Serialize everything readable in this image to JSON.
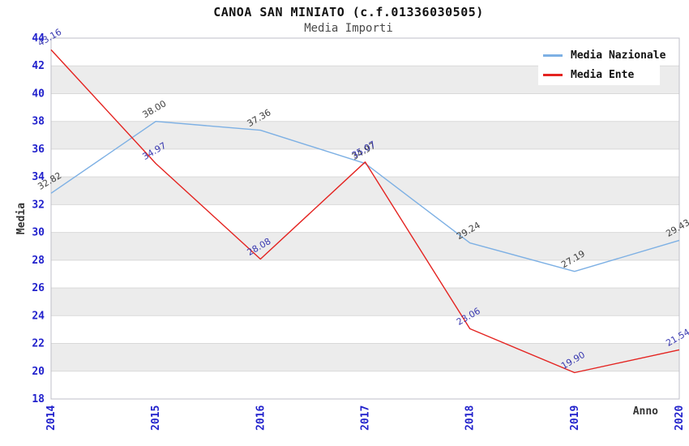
{
  "chart_data": {
    "type": "line",
    "title": "CANOA SAN MINIATO (c.f.01336030505)",
    "subtitle": "Media Importi",
    "xlabel": "Anno",
    "ylabel": "Media",
    "x": [
      "2014",
      "2015",
      "2016",
      "2017",
      "2018",
      "2019",
      "2020"
    ],
    "ylim": [
      18,
      44
    ],
    "ytick_step": 2,
    "grid": "horizontal gridlines with alternating shaded bands",
    "legend_position": "top-right",
    "series": [
      {
        "name": "Media Nazionale",
        "color": "#7db0e4",
        "label_color": "#3f3f3f",
        "values": [
          32.82,
          38.0,
          37.36,
          34.97,
          29.24,
          27.19,
          29.43
        ]
      },
      {
        "name": "Media Ente",
        "color": "#e42320",
        "label_color": "#3838b0",
        "values": [
          43.16,
          34.97,
          28.08,
          35.07,
          23.06,
          19.9,
          21.54
        ]
      }
    ],
    "colors": {
      "tick_label": "#2222cc",
      "band_fill": "#ececec",
      "gridline": "#d9d9d9",
      "plot_border": "#bfbfc8",
      "axis_title": "#333333",
      "title": "#111111",
      "subtitle": "#4a4a4a",
      "background": "#ffffff"
    }
  }
}
